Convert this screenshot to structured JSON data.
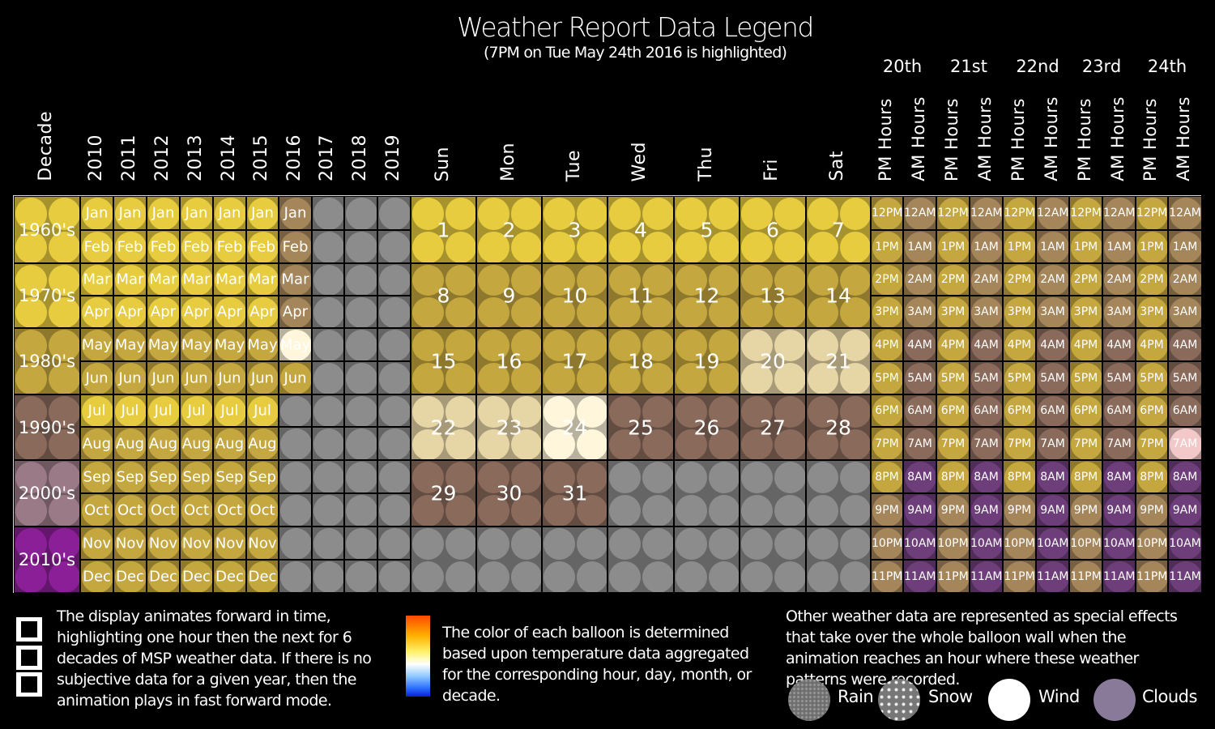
{
  "title": "Weather Report Data Legend",
  "subtitle": "(7PM on Tue May 24th 2016 is highlighted)",
  "day_headers": [
    "20th",
    "21st",
    "22nd",
    "23rd",
    "24th"
  ],
  "col_labels": [
    "Decade",
    "2010",
    "2011",
    "2012",
    "2013",
    "2014",
    "2015",
    "2016",
    "2017",
    "2018",
    "2019",
    "Sun",
    "Mon",
    "Tue",
    "Wed",
    "Thu",
    "Fri",
    "Sat",
    "PM Hours",
    "AM Hours",
    "PM Hours",
    "AM Hours",
    "PM Hours",
    "AM Hours",
    "PM Hours",
    "AM Hours",
    "PM Hours",
    "AM Hours"
  ],
  "decades": [
    "1960's",
    "1970's",
    "1980's",
    "1990's",
    "2000's",
    "2010's"
  ],
  "months": [
    "Jan",
    "Feb",
    "Mar",
    "Apr",
    "May",
    "Jun",
    "Jul",
    "Aug",
    "Sep",
    "Oct",
    "Nov",
    "Dec"
  ],
  "pm_hours": [
    "12PM",
    "1PM",
    "2PM",
    "3PM",
    "4PM",
    "5PM",
    "6PM",
    "7PM",
    "8PM",
    "9PM",
    "10PM",
    "11PM"
  ],
  "am_hours": [
    "12AM",
    "1AM",
    "2AM",
    "3AM",
    "4AM",
    "5AM",
    "6AM",
    "7AM",
    "8AM",
    "9AM",
    "10AM",
    "11AM"
  ],
  "days": [
    "1",
    "2",
    "3",
    "4",
    "5",
    "6",
    "7",
    "8",
    "9",
    "10",
    "11",
    "12",
    "13",
    "14",
    "15",
    "16",
    "17",
    "18",
    "19",
    "20",
    "21",
    "22",
    "23",
    "24",
    "25",
    "26",
    "27",
    "28",
    "29",
    "30",
    "31"
  ],
  "legend": {
    "animation_text": "The display animates forward in time, highlighting one hour then the next for 6 decades of MSP weather data.  If there is no subjective data for a given year, then the animation plays in fast forward mode.",
    "color_text": "The color of each balloon is determined based upon temperature data aggregated for the corresponding hour, day, month, or decade.",
    "other_text": "Other weather data are represented as special effects that take over the whole balloon wall when the animation reaches an hour where these weather patterns were recorded.",
    "effects": [
      "Rain",
      "Snow",
      "Wind",
      "Clouds"
    ]
  },
  "colors": {
    "yellow": "#e6cc3e",
    "gold": "#c4a73e",
    "tan": "#a5865b",
    "brown": "#8a6a5a",
    "mauve": "#9a7a86",
    "purple": "#6e3e7a",
    "magenta": "#8b1f97",
    "gray": "#8c8c8c",
    "pale": "#e6d6a6",
    "white": "#fff6dc"
  }
}
